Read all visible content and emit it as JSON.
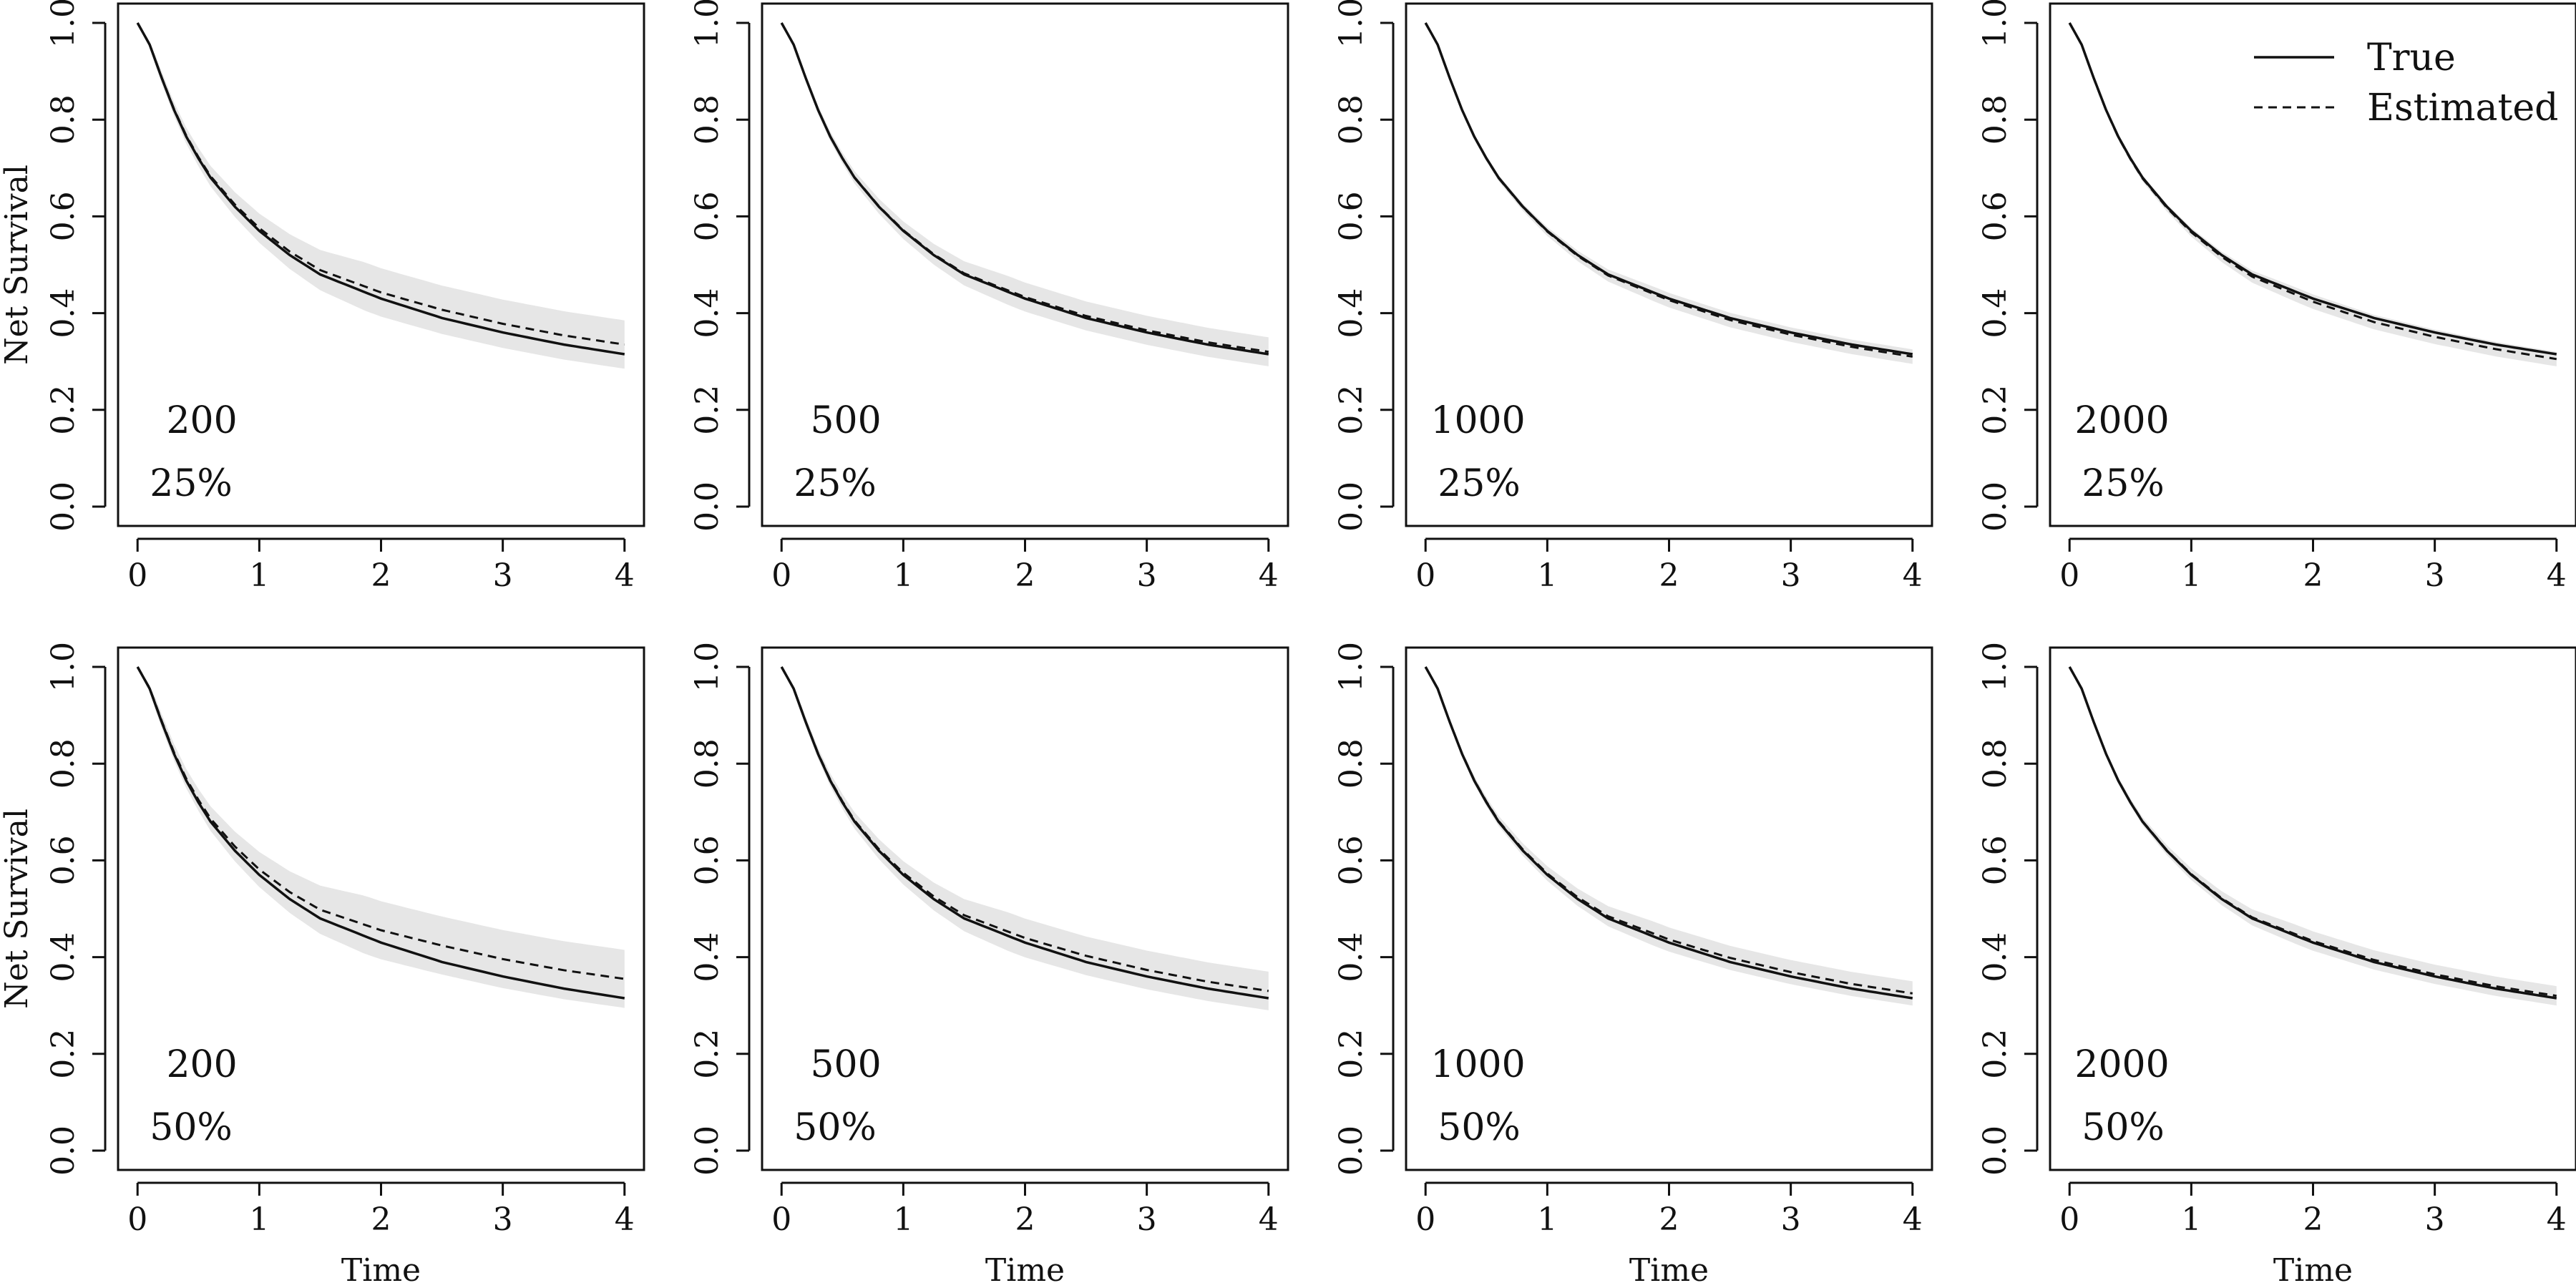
{
  "colors": {
    "band": "#e6e6e6",
    "line": "#111111"
  },
  "chart_data": {
    "type": "line",
    "layout": "2x4 grid of panels",
    "xlabel": "Time",
    "ylabel": "Net Survival",
    "xlim": [
      0,
      4
    ],
    "ylim": [
      0,
      1
    ],
    "x_ticks": [
      "0",
      "1",
      "2",
      "3",
      "4"
    ],
    "y_ticks": [
      "0.0",
      "0.2",
      "0.4",
      "0.6",
      "0.8",
      "1.0"
    ],
    "legend": {
      "placement": "top-right of last panel in first row",
      "entries": [
        {
          "label": "True",
          "style": "solid"
        },
        {
          "label": "Estimated",
          "style": "dashed"
        }
      ]
    },
    "x": [
      0,
      0.1,
      0.2,
      0.3,
      0.4,
      0.5,
      0.6,
      0.8,
      1.0,
      1.25,
      1.5,
      2.0,
      2.5,
      3.0,
      3.5,
      4.0
    ],
    "true_curve": [
      1.0,
      0.955,
      0.885,
      0.82,
      0.765,
      0.72,
      0.68,
      0.62,
      0.57,
      0.52,
      0.48,
      0.43,
      0.39,
      0.36,
      0.335,
      0.315
    ],
    "panels": [
      {
        "n": "200",
        "censoring": "25%",
        "estimated_end": 0.335,
        "band_width_end": 0.05
      },
      {
        "n": "500",
        "censoring": "25%",
        "estimated_end": 0.32,
        "band_width_end": 0.03
      },
      {
        "n": "1000",
        "censoring": "25%",
        "estimated_end": 0.31,
        "band_width_end": 0.015
      },
      {
        "n": "2000",
        "censoring": "25%",
        "estimated_end": 0.305,
        "band_width_end": 0.015
      },
      {
        "n": "200",
        "censoring": "50%",
        "estimated_end": 0.355,
        "band_width_end": 0.06
      },
      {
        "n": "500",
        "censoring": "50%",
        "estimated_end": 0.33,
        "band_width_end": 0.04
      },
      {
        "n": "1000",
        "censoring": "50%",
        "estimated_end": 0.325,
        "band_width_end": 0.025
      },
      {
        "n": "2000",
        "censoring": "50%",
        "estimated_end": 0.32,
        "band_width_end": 0.02
      }
    ]
  }
}
